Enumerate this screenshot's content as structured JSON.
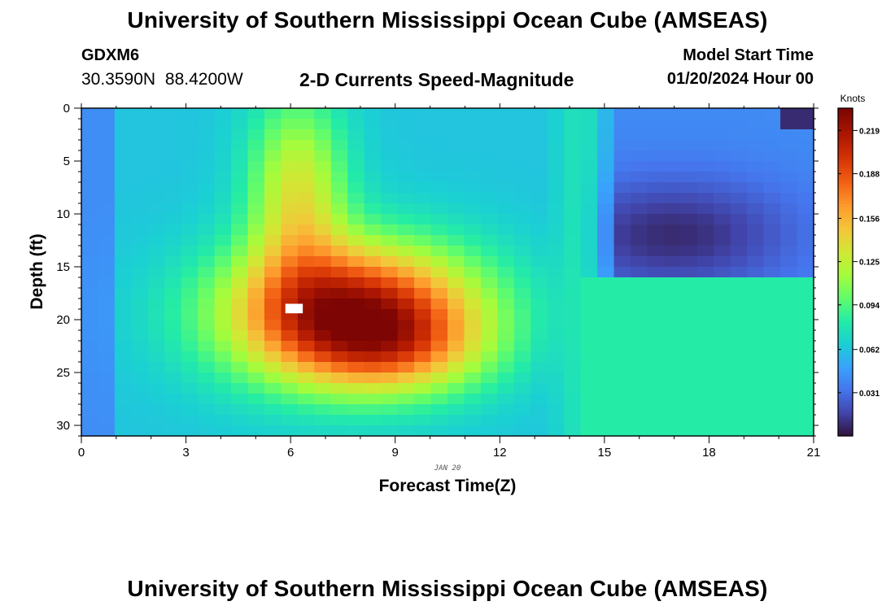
{
  "header": {
    "title": "University of Southern Mississippi Ocean Cube (AMSEAS)",
    "station_id": "GDXM6",
    "coordinates": "30.3590N  88.4200W",
    "subtitle": "2-D Currents Speed-Magnitude",
    "model_start_label": "Model Start Time",
    "model_start_value": "01/20/2024 Hour 00"
  },
  "footer": {
    "title": "University of Southern Mississippi Ocean Cube (AMSEAS)"
  },
  "chart_data": {
    "type": "heatmap",
    "title": "2-D Currents Speed-Magnitude",
    "xlabel": "Forecast Time(Z)",
    "ylabel": "Depth (ft)",
    "date_label": "JAN 20",
    "xlim": [
      0,
      21
    ],
    "ylim": [
      0,
      31
    ],
    "y_inverted": true,
    "x_ticks": [
      0,
      3,
      6,
      9,
      12,
      15,
      18,
      21
    ],
    "y_ticks": [
      0,
      5,
      10,
      15,
      20,
      25,
      30
    ],
    "colorbar": {
      "label": "Knots",
      "vmin": 0.0,
      "vmax": 0.235,
      "ticks": [
        "0.219",
        "0.188",
        "0.156",
        "0.125",
        "0.094",
        "0.062",
        "0.031"
      ],
      "tick_values": [
        0.219,
        0.188,
        0.156,
        0.125,
        0.094,
        0.062,
        0.031
      ],
      "colormap": "turbo"
    },
    "field_description": "Current speed (knots) versus forecast hour and depth",
    "features": [
      {
        "name": "high-speed core",
        "x": 6.5,
        "y": 19,
        "value": 0.23
      },
      {
        "name": "low-speed pocket",
        "x": 17,
        "y": 12,
        "value": 0.015
      },
      {
        "name": "low-speed upper-right",
        "x": 20.5,
        "y": 2,
        "value": 0.01
      }
    ]
  }
}
